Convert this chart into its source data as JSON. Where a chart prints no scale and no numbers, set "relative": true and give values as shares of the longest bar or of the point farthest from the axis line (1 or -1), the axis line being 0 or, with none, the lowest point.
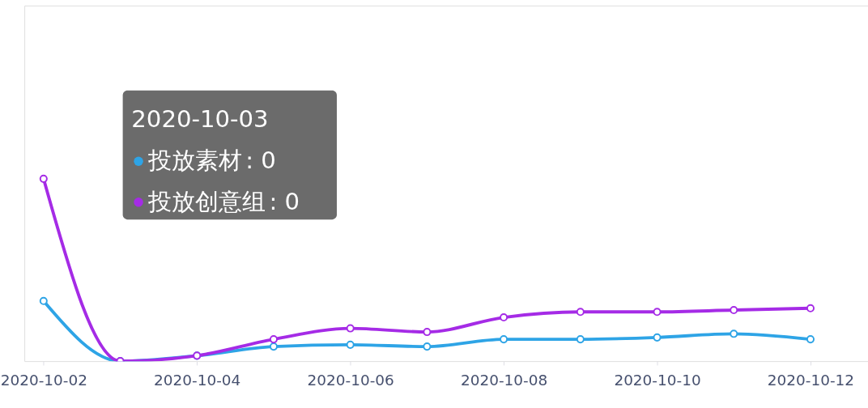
{
  "chart_data": {
    "type": "line",
    "relative": true,
    "x": [
      "2020-10-02",
      "2020-10-03",
      "2020-10-04",
      "2020-10-05",
      "2020-10-06",
      "2020-10-07",
      "2020-10-08",
      "2020-10-09",
      "2020-10-10",
      "2020-10-11",
      "2020-10-12"
    ],
    "xlim": [
      "2020-10-01T18:00",
      "2020-10-12T18:00"
    ],
    "xticks": [
      "2020-10-02",
      "2020-10-04",
      "2020-10-06",
      "2020-10-08",
      "2020-10-10",
      "2020-10-12"
    ],
    "series": [
      {
        "name": "投放素材",
        "color": "#2ea4e6",
        "values": [
          0.33,
          0,
          0.03,
          0.08,
          0.09,
          0.08,
          0.12,
          0.12,
          0.13,
          0.15,
          0.12
        ]
      },
      {
        "name": "投放创意组",
        "color": "#a52be6",
        "values": [
          1,
          0,
          0.03,
          0.12,
          0.18,
          0.16,
          0.24,
          0.27,
          0.27,
          0.28,
          0.29
        ]
      }
    ],
    "annotations": [
      "2020-10-03",
      ": 0",
      ": 0"
    ],
    "legend": "top left",
    "grid": false,
    "marker": "circle",
    "line_style": "solid"
  }
}
